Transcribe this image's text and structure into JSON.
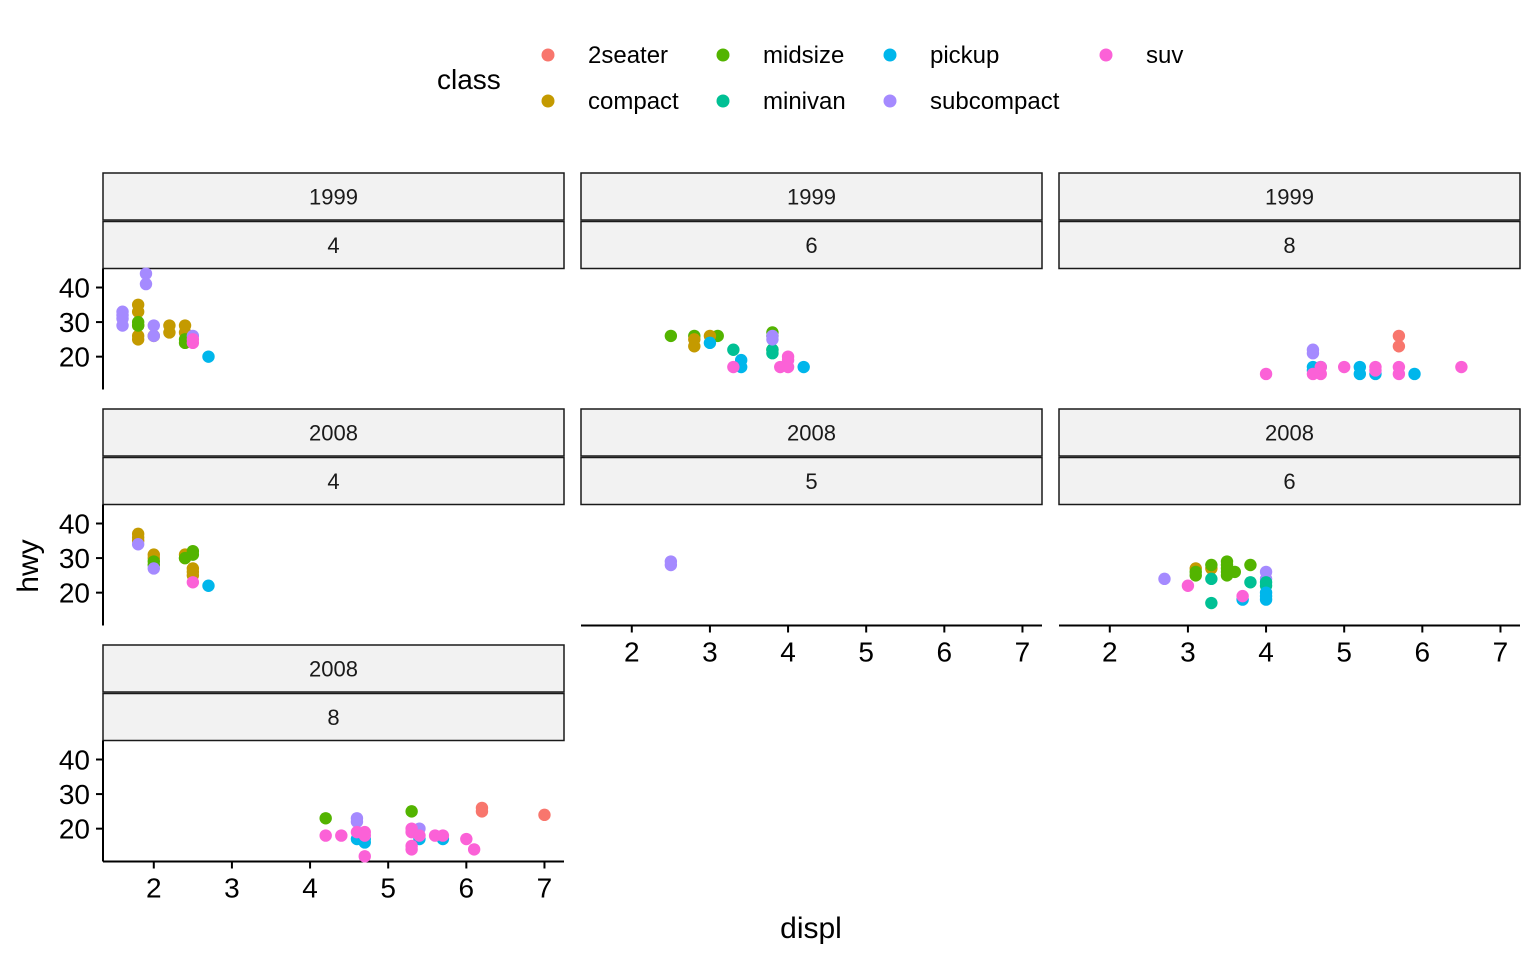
{
  "chart_data": {
    "type": "scatter",
    "facets": "year ~ cyl (wrapped)",
    "xlabel": "displ",
    "ylabel": "hwy",
    "xlim": [
      1.35,
      7.25
    ],
    "ylim": [
      10.5,
      45.5
    ],
    "x_ticks": [
      2,
      3,
      4,
      5,
      6,
      7
    ],
    "y_ticks": [
      20,
      30,
      40
    ],
    "legend": {
      "title": "class",
      "position": "top",
      "entries": [
        {
          "name": "2seater",
          "color": "#F8766D"
        },
        {
          "name": "compact",
          "color": "#C49A00"
        },
        {
          "name": "midsize",
          "color": "#53B400"
        },
        {
          "name": "minivan",
          "color": "#00C094"
        },
        {
          "name": "pickup",
          "color": "#00B6EB"
        },
        {
          "name": "subcompact",
          "color": "#A58AFF"
        },
        {
          "name": "suv",
          "color": "#FB61D7"
        }
      ]
    },
    "panels": [
      {
        "year": "1999",
        "cyl": "4",
        "points": [
          {
            "x": 1.8,
            "y": 29,
            "c": "compact"
          },
          {
            "x": 1.8,
            "y": 26,
            "c": "compact"
          },
          {
            "x": 1.8,
            "y": 25,
            "c": "compact"
          },
          {
            "x": 1.8,
            "y": 33,
            "c": "compact"
          },
          {
            "x": 1.8,
            "y": 35,
            "c": "compact"
          },
          {
            "x": 2.0,
            "y": 26,
            "c": "compact"
          },
          {
            "x": 2.2,
            "y": 29,
            "c": "compact"
          },
          {
            "x": 2.2,
            "y": 27,
            "c": "compact"
          },
          {
            "x": 2.4,
            "y": 29,
            "c": "compact"
          },
          {
            "x": 2.4,
            "y": 27,
            "c": "compact"
          },
          {
            "x": 1.8,
            "y": 29,
            "c": "midsize"
          },
          {
            "x": 1.8,
            "y": 30,
            "c": "midsize"
          },
          {
            "x": 2.4,
            "y": 24,
            "c": "midsize"
          },
          {
            "x": 2.4,
            "y": 25,
            "c": "midsize"
          },
          {
            "x": 2.7,
            "y": 20,
            "c": "pickup"
          },
          {
            "x": 1.6,
            "y": 33,
            "c": "subcompact"
          },
          {
            "x": 1.6,
            "y": 32,
            "c": "subcompact"
          },
          {
            "x": 1.6,
            "y": 29,
            "c": "subcompact"
          },
          {
            "x": 1.6,
            "y": 31,
            "c": "subcompact"
          },
          {
            "x": 1.9,
            "y": 44,
            "c": "subcompact"
          },
          {
            "x": 1.9,
            "y": 41,
            "c": "subcompact"
          },
          {
            "x": 2.0,
            "y": 26,
            "c": "subcompact"
          },
          {
            "x": 2.0,
            "y": 29,
            "c": "subcompact"
          },
          {
            "x": 2.5,
            "y": 26,
            "c": "subcompact"
          },
          {
            "x": 2.5,
            "y": 24,
            "c": "suv"
          },
          {
            "x": 2.5,
            "y": 25,
            "c": "suv"
          }
        ]
      },
      {
        "year": "1999",
        "cyl": "6",
        "points": [
          {
            "x": 2.5,
            "y": 26,
            "c": "midsize"
          },
          {
            "x": 2.8,
            "y": 26,
            "c": "midsize"
          },
          {
            "x": 3.1,
            "y": 26,
            "c": "midsize"
          },
          {
            "x": 3.8,
            "y": 26,
            "c": "midsize"
          },
          {
            "x": 3.8,
            "y": 27,
            "c": "midsize"
          },
          {
            "x": 3.8,
            "y": 22,
            "c": "midsize"
          },
          {
            "x": 2.8,
            "y": 25,
            "c": "compact"
          },
          {
            "x": 2.8,
            "y": 23,
            "c": "compact"
          },
          {
            "x": 3.0,
            "y": 26,
            "c": "compact"
          },
          {
            "x": 3.0,
            "y": 24,
            "c": "pickup"
          },
          {
            "x": 3.3,
            "y": 22,
            "c": "minivan"
          },
          {
            "x": 3.8,
            "y": 21,
            "c": "minivan"
          },
          {
            "x": 3.8,
            "y": 22,
            "c": "minivan"
          },
          {
            "x": 3.4,
            "y": 19,
            "c": "pickup"
          },
          {
            "x": 3.4,
            "y": 17,
            "c": "pickup"
          },
          {
            "x": 4.2,
            "y": 17,
            "c": "pickup"
          },
          {
            "x": 3.8,
            "y": 25,
            "c": "subcompact"
          },
          {
            "x": 3.8,
            "y": 26,
            "c": "subcompact"
          },
          {
            "x": 3.3,
            "y": 17,
            "c": "suv"
          },
          {
            "x": 3.9,
            "y": 17,
            "c": "suv"
          },
          {
            "x": 4.0,
            "y": 20,
            "c": "suv"
          },
          {
            "x": 4.0,
            "y": 19,
            "c": "suv"
          },
          {
            "x": 4.0,
            "y": 17,
            "c": "suv"
          }
        ]
      },
      {
        "year": "1999",
        "cyl": "8",
        "points": [
          {
            "x": 5.7,
            "y": 26,
            "c": "2seater"
          },
          {
            "x": 5.7,
            "y": 23,
            "c": "2seater"
          },
          {
            "x": 4.6,
            "y": 22,
            "c": "subcompact"
          },
          {
            "x": 4.6,
            "y": 21,
            "c": "subcompact"
          },
          {
            "x": 4.6,
            "y": 17,
            "c": "pickup"
          },
          {
            "x": 4.6,
            "y": 16,
            "c": "pickup"
          },
          {
            "x": 4.7,
            "y": 17,
            "c": "pickup"
          },
          {
            "x": 5.2,
            "y": 17,
            "c": "pickup"
          },
          {
            "x": 5.2,
            "y": 15,
            "c": "pickup"
          },
          {
            "x": 5.4,
            "y": 15,
            "c": "pickup"
          },
          {
            "x": 5.9,
            "y": 15,
            "c": "pickup"
          },
          {
            "x": 4.0,
            "y": 15,
            "c": "suv"
          },
          {
            "x": 4.6,
            "y": 15,
            "c": "suv"
          },
          {
            "x": 4.7,
            "y": 15,
            "c": "suv"
          },
          {
            "x": 4.7,
            "y": 17,
            "c": "suv"
          },
          {
            "x": 5.0,
            "y": 17,
            "c": "suv"
          },
          {
            "x": 5.4,
            "y": 17,
            "c": "suv"
          },
          {
            "x": 5.4,
            "y": 16,
            "c": "suv"
          },
          {
            "x": 5.7,
            "y": 17,
            "c": "suv"
          },
          {
            "x": 5.7,
            "y": 15,
            "c": "suv"
          },
          {
            "x": 6.5,
            "y": 17,
            "c": "suv"
          }
        ]
      },
      {
        "year": "2008",
        "cyl": "4",
        "points": [
          {
            "x": 1.8,
            "y": 37,
            "c": "compact"
          },
          {
            "x": 1.8,
            "y": 36,
            "c": "compact"
          },
          {
            "x": 1.8,
            "y": 35,
            "c": "compact"
          },
          {
            "x": 2.0,
            "y": 31,
            "c": "compact"
          },
          {
            "x": 2.0,
            "y": 30,
            "c": "compact"
          },
          {
            "x": 2.4,
            "y": 31,
            "c": "compact"
          },
          {
            "x": 2.4,
            "y": 30,
            "c": "compact"
          },
          {
            "x": 2.5,
            "y": 27,
            "c": "compact"
          },
          {
            "x": 2.5,
            "y": 26,
            "c": "compact"
          },
          {
            "x": 2.5,
            "y": 25,
            "c": "compact"
          },
          {
            "x": 2.0,
            "y": 29,
            "c": "midsize"
          },
          {
            "x": 2.0,
            "y": 28,
            "c": "midsize"
          },
          {
            "x": 2.4,
            "y": 30,
            "c": "midsize"
          },
          {
            "x": 2.5,
            "y": 32,
            "c": "midsize"
          },
          {
            "x": 2.5,
            "y": 31,
            "c": "midsize"
          },
          {
            "x": 2.7,
            "y": 22,
            "c": "pickup"
          },
          {
            "x": 1.8,
            "y": 34,
            "c": "subcompact"
          },
          {
            "x": 2.0,
            "y": 27,
            "c": "subcompact"
          },
          {
            "x": 2.5,
            "y": 23,
            "c": "suv"
          }
        ]
      },
      {
        "year": "2008",
        "cyl": "5",
        "points": [
          {
            "x": 2.5,
            "y": 29,
            "c": "subcompact"
          },
          {
            "x": 2.5,
            "y": 28,
            "c": "subcompact"
          }
        ]
      },
      {
        "year": "2008",
        "cyl": "6",
        "points": [
          {
            "x": 2.7,
            "y": 24,
            "c": "subcompact"
          },
          {
            "x": 3.0,
            "y": 22,
            "c": "suv"
          },
          {
            "x": 3.1,
            "y": 27,
            "c": "compact"
          },
          {
            "x": 3.1,
            "y": 25,
            "c": "midsize"
          },
          {
            "x": 3.1,
            "y": 26,
            "c": "midsize"
          },
          {
            "x": 3.3,
            "y": 27,
            "c": "compact"
          },
          {
            "x": 3.3,
            "y": 28,
            "c": "midsize"
          },
          {
            "x": 3.3,
            "y": 24,
            "c": "minivan"
          },
          {
            "x": 3.3,
            "y": 17,
            "c": "minivan"
          },
          {
            "x": 3.5,
            "y": 29,
            "c": "midsize"
          },
          {
            "x": 3.5,
            "y": 28,
            "c": "midsize"
          },
          {
            "x": 3.5,
            "y": 27,
            "c": "midsize"
          },
          {
            "x": 3.5,
            "y": 26,
            "c": "midsize"
          },
          {
            "x": 3.5,
            "y": 25,
            "c": "midsize"
          },
          {
            "x": 3.6,
            "y": 26,
            "c": "midsize"
          },
          {
            "x": 3.7,
            "y": 18,
            "c": "pickup"
          },
          {
            "x": 3.7,
            "y": 19,
            "c": "suv"
          },
          {
            "x": 3.8,
            "y": 28,
            "c": "midsize"
          },
          {
            "x": 3.8,
            "y": 23,
            "c": "minivan"
          },
          {
            "x": 4.0,
            "y": 26,
            "c": "subcompact"
          },
          {
            "x": 4.0,
            "y": 24,
            "c": "subcompact"
          },
          {
            "x": 4.0,
            "y": 23,
            "c": "minivan"
          },
          {
            "x": 4.0,
            "y": 22,
            "c": "minivan"
          },
          {
            "x": 4.0,
            "y": 20,
            "c": "pickup"
          },
          {
            "x": 4.0,
            "y": 19,
            "c": "pickup"
          },
          {
            "x": 4.0,
            "y": 18,
            "c": "pickup"
          }
        ]
      },
      {
        "year": "2008",
        "cyl": "8",
        "points": [
          {
            "x": 6.2,
            "y": 26,
            "c": "2seater"
          },
          {
            "x": 6.2,
            "y": 25,
            "c": "2seater"
          },
          {
            "x": 7.0,
            "y": 24,
            "c": "2seater"
          },
          {
            "x": 4.2,
            "y": 23,
            "c": "midsize"
          },
          {
            "x": 5.3,
            "y": 25,
            "c": "midsize"
          },
          {
            "x": 4.6,
            "y": 23,
            "c": "subcompact"
          },
          {
            "x": 4.6,
            "y": 22,
            "c": "subcompact"
          },
          {
            "x": 5.4,
            "y": 20,
            "c": "subcompact"
          },
          {
            "x": 4.6,
            "y": 17,
            "c": "pickup"
          },
          {
            "x": 4.7,
            "y": 17,
            "c": "pickup"
          },
          {
            "x": 4.7,
            "y": 16,
            "c": "pickup"
          },
          {
            "x": 5.4,
            "y": 17,
            "c": "pickup"
          },
          {
            "x": 5.7,
            "y": 17,
            "c": "pickup"
          },
          {
            "x": 4.2,
            "y": 18,
            "c": "suv"
          },
          {
            "x": 4.4,
            "y": 18,
            "c": "suv"
          },
          {
            "x": 4.6,
            "y": 19,
            "c": "suv"
          },
          {
            "x": 4.7,
            "y": 19,
            "c": "suv"
          },
          {
            "x": 4.7,
            "y": 18,
            "c": "suv"
          },
          {
            "x": 4.7,
            "y": 12,
            "c": "suv"
          },
          {
            "x": 5.3,
            "y": 20,
            "c": "suv"
          },
          {
            "x": 5.3,
            "y": 19,
            "c": "suv"
          },
          {
            "x": 5.3,
            "y": 15,
            "c": "suv"
          },
          {
            "x": 5.3,
            "y": 14,
            "c": "suv"
          },
          {
            "x": 5.4,
            "y": 18,
            "c": "suv"
          },
          {
            "x": 5.6,
            "y": 18,
            "c": "suv"
          },
          {
            "x": 5.7,
            "y": 18,
            "c": "suv"
          },
          {
            "x": 6.0,
            "y": 17,
            "c": "suv"
          },
          {
            "x": 6.1,
            "y": 14,
            "c": "suv"
          }
        ]
      }
    ]
  }
}
